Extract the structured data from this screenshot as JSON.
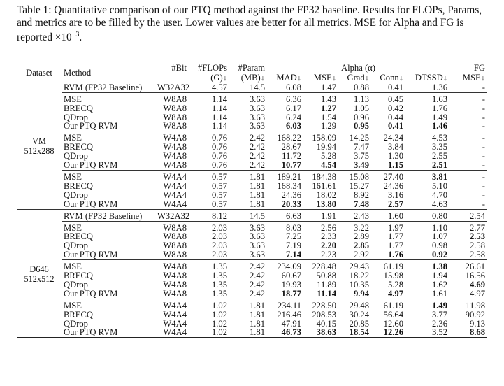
{
  "caption": {
    "text": "Table 1: Quantitative comparison of our PTQ method against the FP32 baseline. Results for FLOPs, Params, and metrics are to be filled by the user. Lower values are better for all metrics. MSE for Alpha and FG is reported ×10",
    "exponent": "−3",
    "end": "."
  },
  "header": {
    "dataset": "Dataset",
    "method": "Method",
    "bit": "#Bit",
    "flops": "#FLOPs",
    "flops_unit": "(G)↓",
    "params": "#Param",
    "params_unit": "(MB)↓",
    "alpha": "Alpha (α)",
    "fg": "FG",
    "mad": "MAD↓",
    "mse": "MSE↓",
    "grad": "Grad↓",
    "conn": "Conn↓",
    "dtssd": "DTSSD↓",
    "fg_mse": "MSE↓"
  },
  "datasets": [
    {
      "name": "VM",
      "resolution": "512x288",
      "groups": [
        {
          "rows": [
            {
              "method": "RVM (FP32 Baseline)",
              "cells": [
                "W32A32",
                "4.57",
                "14.5",
                "6.08",
                "1.47",
                "0.88",
                "0.41",
                "1.36",
                "-"
              ],
              "bold": []
            }
          ]
        },
        {
          "rows": [
            {
              "method": "MSE",
              "cells": [
                "W8A8",
                "1.14",
                "3.63",
                "6.36",
                "1.43",
                "1.13",
                "0.45",
                "1.63",
                "-"
              ],
              "bold": []
            },
            {
              "method": "BRECQ",
              "cells": [
                "W8A8",
                "1.14",
                "3.63",
                "6.17",
                "1.27",
                "1.05",
                "0.42",
                "1.76",
                "-"
              ],
              "bold": [
                4
              ]
            },
            {
              "method": "QDrop",
              "cells": [
                "W8A8",
                "1.14",
                "3.63",
                "6.24",
                "1.54",
                "0.96",
                "0.44",
                "1.49",
                "-"
              ],
              "bold": []
            },
            {
              "method": "Our PTQ RVM",
              "cells": [
                "W8A8",
                "1.14",
                "3.63",
                "6.03",
                "1.29",
                "0.95",
                "0.41",
                "1.46",
                "-"
              ],
              "bold": [
                3,
                5,
                6,
                7
              ]
            }
          ]
        },
        {
          "rows": [
            {
              "method": "MSE",
              "cells": [
                "W4A8",
                "0.76",
                "2.42",
                "168.22",
                "158.09",
                "14.25",
                "24.34",
                "4.53",
                "-"
              ],
              "bold": []
            },
            {
              "method": "BRECQ",
              "cells": [
                "W4A8",
                "0.76",
                "2.42",
                "28.67",
                "19.94",
                "7.47",
                "3.84",
                "3.35",
                "-"
              ],
              "bold": []
            },
            {
              "method": "QDrop",
              "cells": [
                "W4A8",
                "0.76",
                "2.42",
                "11.72",
                "5.28",
                "3.75",
                "1.30",
                "2.55",
                "-"
              ],
              "bold": []
            },
            {
              "method": "Our PTQ RVM",
              "cells": [
                "W4A8",
                "0.76",
                "2.42",
                "10.77",
                "4.54",
                "3.49",
                "1.15",
                "2.51",
                "-"
              ],
              "bold": [
                3,
                4,
                5,
                6,
                7
              ]
            }
          ]
        },
        {
          "rows": [
            {
              "method": "MSE",
              "cells": [
                "W4A4",
                "0.57",
                "1.81",
                "189.21",
                "184.38",
                "15.08",
                "27.40",
                "3.81",
                "-"
              ],
              "bold": [
                7
              ]
            },
            {
              "method": "BRECQ",
              "cells": [
                "W4A4",
                "0.57",
                "1.81",
                "168.34",
                "161.61",
                "15.27",
                "24.36",
                "5.10",
                "-"
              ],
              "bold": []
            },
            {
              "method": "QDrop",
              "cells": [
                "W4A4",
                "0.57",
                "1.81",
                "24.36",
                "18.02",
                "8.92",
                "3.16",
                "4.70",
                "-"
              ],
              "bold": []
            },
            {
              "method": "Our PTQ RVM",
              "cells": [
                "W4A4",
                "0.57",
                "1.81",
                "20.33",
                "13.80",
                "7.48",
                "2.57",
                "4.63",
                "-"
              ],
              "bold": [
                3,
                4,
                5,
                6
              ]
            }
          ]
        }
      ]
    },
    {
      "name": "D646",
      "resolution": "512x512",
      "groups": [
        {
          "rows": [
            {
              "method": "RVM (FP32 Baseline)",
              "cells": [
                "W32A32",
                "8.12",
                "14.5",
                "6.63",
                "1.91",
                "2.43",
                "1.60",
                "0.80",
                "2.54"
              ],
              "bold": []
            }
          ]
        },
        {
          "rows": [
            {
              "method": "MSE",
              "cells": [
                "W8A8",
                "2.03",
                "3.63",
                "8.03",
                "2.56",
                "3.22",
                "1.97",
                "1.10",
                "2.77"
              ],
              "bold": []
            },
            {
              "method": "BRECQ",
              "cells": [
                "W8A8",
                "2.03",
                "3.63",
                "7.25",
                "2.33",
                "2.89",
                "1.77",
                "1.07",
                "2.53"
              ],
              "bold": [
                8
              ]
            },
            {
              "method": "QDrop",
              "cells": [
                "W8A8",
                "2.03",
                "3.63",
                "7.19",
                "2.20",
                "2.85",
                "1.77",
                "0.98",
                "2.58"
              ],
              "bold": [
                4,
                5
              ]
            },
            {
              "method": "Our PTQ RVM",
              "cells": [
                "W8A8",
                "2.03",
                "3.63",
                "7.14",
                "2.23",
                "2.92",
                "1.76",
                "0.92",
                "2.58"
              ],
              "bold": [
                3,
                6,
                7
              ]
            }
          ]
        },
        {
          "rows": [
            {
              "method": "MSE",
              "cells": [
                "W4A8",
                "1.35",
                "2.42",
                "234.09",
                "228.48",
                "29.43",
                "61.19",
                "1.38",
                "26.61"
              ],
              "bold": [
                7
              ]
            },
            {
              "method": "BRECQ",
              "cells": [
                "W4A8",
                "1.35",
                "2.42",
                "60.67",
                "50.88",
                "18.22",
                "15.98",
                "1.94",
                "16.56"
              ],
              "bold": []
            },
            {
              "method": "QDrop",
              "cells": [
                "W4A8",
                "1.35",
                "2.42",
                "19.93",
                "11.89",
                "10.35",
                "5.28",
                "1.62",
                "4.69"
              ],
              "bold": [
                8
              ]
            },
            {
              "method": "Our PTQ RVM",
              "cells": [
                "W4A8",
                "1.35",
                "2.42",
                "18.77",
                "11.14",
                "9.94",
                "4.97",
                "1.61",
                "4.97"
              ],
              "bold": [
                3,
                4,
                5,
                6
              ]
            }
          ]
        },
        {
          "rows": [
            {
              "method": "MSE",
              "cells": [
                "W4A4",
                "1.02",
                "1.81",
                "234.11",
                "228.50",
                "29.48",
                "61.19",
                "1.49",
                "11.98"
              ],
              "bold": [
                7
              ]
            },
            {
              "method": "BRECQ",
              "cells": [
                "W4A4",
                "1.02",
                "1.81",
                "216.46",
                "208.53",
                "30.24",
                "56.64",
                "3.77",
                "90.92"
              ],
              "bold": []
            },
            {
              "method": "QDrop",
              "cells": [
                "W4A4",
                "1.02",
                "1.81",
                "47.91",
                "40.15",
                "20.85",
                "12.60",
                "2.36",
                "9.13"
              ],
              "bold": []
            },
            {
              "method": "Our PTQ RVM",
              "cells": [
                "W4A4",
                "1.02",
                "1.81",
                "46.73",
                "38.63",
                "18.54",
                "12.26",
                "3.52",
                "8.68"
              ],
              "bold": [
                3,
                4,
                5,
                6,
                8
              ]
            }
          ]
        }
      ]
    }
  ]
}
